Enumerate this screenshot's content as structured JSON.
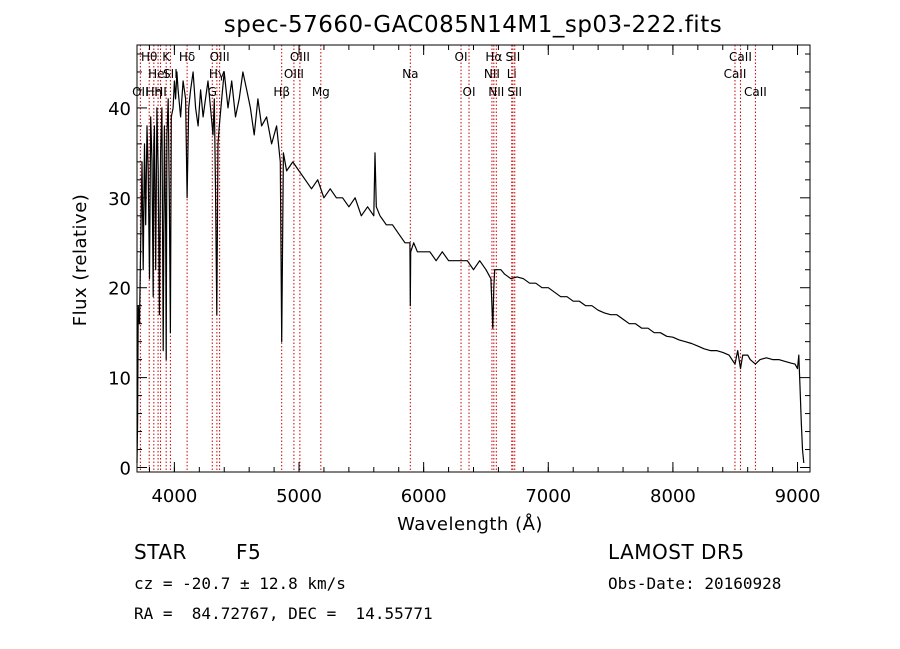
{
  "chart_data": {
    "type": "line",
    "title": "spec-57660-GAC085N14M1_sp03-222.fits",
    "xlabel": "Wavelength (Å)",
    "ylabel": "Flux (relative)",
    "xlim": [
      3700,
      9100
    ],
    "ylim": [
      -0.5,
      47
    ],
    "xticks": [
      4000,
      5000,
      6000,
      7000,
      8000,
      9000
    ],
    "xtick_labels": [
      "4000",
      "5000",
      "6000",
      "7000",
      "8000",
      "9000"
    ],
    "yticks": [
      0,
      10,
      20,
      30,
      40
    ],
    "ytick_labels": [
      "0",
      "10",
      "20",
      "30",
      "40"
    ],
    "grid": false,
    "series": [
      {
        "x": [
          3700,
          3705,
          3710,
          3720,
          3730,
          3740,
          3750,
          3760,
          3770,
          3780,
          3790,
          3800,
          3810,
          3820,
          3830,
          3835,
          3840,
          3850,
          3860,
          3870,
          3880,
          3889,
          3900,
          3910,
          3920,
          3930,
          3934,
          3940,
          3950,
          3960,
          3968,
          3975,
          3990,
          4000,
          4010,
          4020,
          4030,
          4050,
          4070,
          4090,
          4102,
          4115,
          4130,
          4150,
          4170,
          4190,
          4210,
          4230,
          4250,
          4270,
          4290,
          4310,
          4320,
          4330,
          4340,
          4350,
          4360,
          4380,
          4400,
          4430,
          4460,
          4490,
          4520,
          4550,
          4580,
          4610,
          4640,
          4670,
          4700,
          4740,
          4780,
          4820,
          4850,
          4861,
          4875,
          4900,
          4950,
          5000,
          5050,
          5100,
          5150,
          5200,
          5250,
          5300,
          5350,
          5400,
          5450,
          5500,
          5550,
          5600,
          5610,
          5620,
          5650,
          5700,
          5750,
          5800,
          5850,
          5890,
          5893,
          5896,
          5920,
          5950,
          6000,
          6050,
          6100,
          6150,
          6200,
          6250,
          6300,
          6350,
          6400,
          6450,
          6500,
          6540,
          6555,
          6563,
          6570,
          6590,
          6620,
          6650,
          6700,
          6750,
          6800,
          6850,
          6900,
          6950,
          7000,
          7050,
          7100,
          7150,
          7200,
          7250,
          7300,
          7350,
          7400,
          7450,
          7500,
          7550,
          7600,
          7650,
          7700,
          7750,
          7800,
          7850,
          7900,
          7950,
          8000,
          8050,
          8100,
          8150,
          8200,
          8250,
          8300,
          8350,
          8400,
          8450,
          8498,
          8520,
          8542,
          8560,
          8600,
          8620,
          8662,
          8700,
          8750,
          8800,
          8850,
          8900,
          8950,
          8980,
          9000,
          9010,
          9020,
          9030,
          9040,
          9050
        ],
        "y": [
          0.5,
          5,
          18,
          16,
          25,
          34,
          22,
          36,
          27,
          38,
          33,
          21,
          39,
          34,
          19,
          36,
          38,
          22,
          40,
          33,
          17,
          35,
          40,
          13,
          38,
          26,
          12,
          37,
          41,
          29,
          15,
          39,
          40,
          43,
          41,
          44,
          42,
          39,
          43,
          41,
          30,
          40,
          42,
          44,
          40,
          38,
          42,
          39,
          41,
          43,
          40,
          37,
          41,
          31,
          17,
          36,
          38,
          41,
          44,
          40,
          43,
          39,
          41,
          44,
          42,
          40,
          37,
          41,
          38,
          39,
          36,
          38,
          34,
          14,
          35,
          33,
          34,
          33,
          32,
          31,
          32,
          30,
          31,
          30,
          30,
          29,
          30,
          28,
          29,
          28,
          35,
          29,
          28,
          27,
          27,
          26,
          25,
          25,
          18,
          24,
          25,
          24,
          24,
          24,
          23,
          24,
          23,
          23,
          23,
          23,
          22,
          23,
          22,
          21,
          15.5,
          20,
          22,
          22,
          22,
          21.5,
          21,
          21.2,
          21,
          20.5,
          20.5,
          20,
          20,
          19.5,
          19,
          19,
          18.5,
          18.5,
          18,
          18,
          17.5,
          17.2,
          17,
          17,
          16.5,
          16,
          16,
          15.5,
          15.5,
          15,
          15,
          14.6,
          14.5,
          14.2,
          14,
          13.8,
          13.5,
          13.2,
          13,
          13,
          12.8,
          12.5,
          11.5,
          13,
          11,
          12.5,
          12.5,
          12,
          11.5,
          12,
          12.2,
          12,
          12,
          11.8,
          11.6,
          11.5,
          11,
          12.5,
          9,
          5,
          2,
          0.5
        ]
      }
    ],
    "lines": [
      {
        "x": 3727,
        "label": "OII",
        "row": 3
      },
      {
        "x": 3798,
        "label": "Hθ",
        "row": 1
      },
      {
        "x": 3835,
        "label": "Hη",
        "row": 3
      },
      {
        "x": 3869,
        "label": "HeI",
        "row": 2
      },
      {
        "x": 3889,
        "label": "HI",
        "row": 3
      },
      {
        "x": 3934,
        "label": "K",
        "row": 1
      },
      {
        "x": 3968,
        "label": "SII",
        "row": 2
      },
      {
        "x": 4102,
        "label": "Hδ",
        "row": 1
      },
      {
        "x": 4304,
        "label": "G",
        "row": 3
      },
      {
        "x": 4341,
        "label": "Hγ",
        "row": 2
      },
      {
        "x": 4363,
        "label": "OIII",
        "row": 1
      },
      {
        "x": 4861,
        "label": "Hβ",
        "row": 3
      },
      {
        "x": 4959,
        "label": "OIII",
        "row": 2
      },
      {
        "x": 5007,
        "label": "OIII",
        "row": 1
      },
      {
        "x": 5175,
        "label": "Mg",
        "row": 3
      },
      {
        "x": 5893,
        "label": "Na",
        "row": 2
      },
      {
        "x": 6300,
        "label": "OI",
        "row": 1
      },
      {
        "x": 6364,
        "label": "OI",
        "row": 3
      },
      {
        "x": 6548,
        "label": "NII",
        "row": 2
      },
      {
        "x": 6563,
        "label": "Hα",
        "row": 1
      },
      {
        "x": 6583,
        "label": "NII",
        "row": 3
      },
      {
        "x": 6707,
        "label": "Li",
        "row": 2
      },
      {
        "x": 6716,
        "label": "SII",
        "row": 1
      },
      {
        "x": 6731,
        "label": "SII",
        "row": 3
      },
      {
        "x": 8498,
        "label": "CaII",
        "row": 2
      },
      {
        "x": 8542,
        "label": "CaII",
        "row": 1
      },
      {
        "x": 8662,
        "label": "CaII",
        "row": 3
      }
    ]
  },
  "info": {
    "class_label": "STAR",
    "subclass": "F5",
    "survey": "LAMOST DR5",
    "cz": "cz = -20.7 ± 12.8 km/s",
    "obs_date": "Obs-Date: 20160928",
    "radec": "RA =  84.72767, DEC =  14.55771"
  },
  "colors": {
    "line_marker": "#cc0000",
    "spectrum": "#000000",
    "axes": "#000000"
  }
}
